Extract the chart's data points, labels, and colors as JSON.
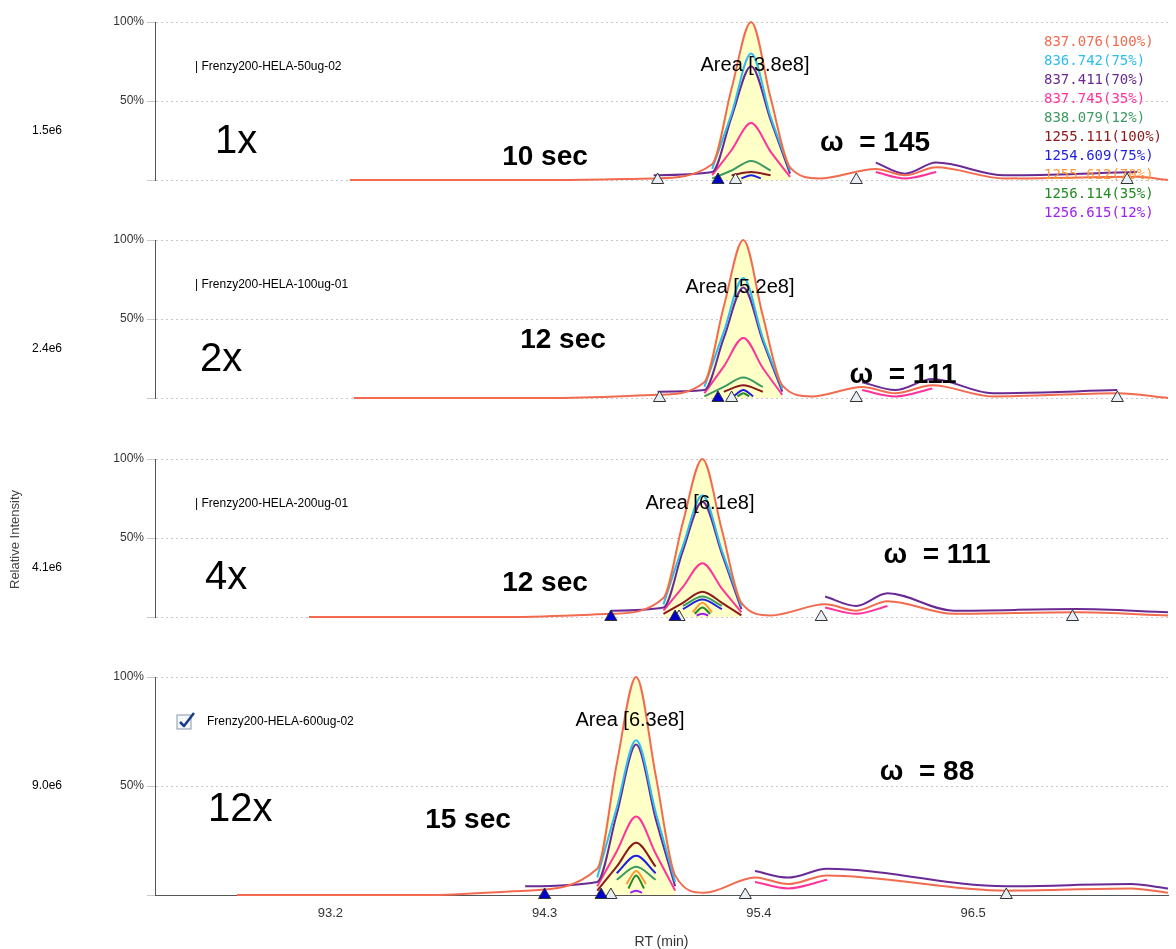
{
  "chart_data": [
    {
      "type": "line",
      "xlim": [
        92.3,
        97.5
      ],
      "ylim": [
        0,
        100
      ],
      "yticks": [
        {
          "value": 0,
          "label": null
        },
        {
          "value": 50,
          "label": "50%"
        },
        {
          "value": 100,
          "label": "100%"
        }
      ],
      "grid": "y",
      "tick_labels": "y",
      "marker": "none",
      "legend": "right",
      "x": [
        93.3,
        94.36,
        94.86,
        95.16,
        95.26,
        95.36,
        95.46,
        95.56,
        95.71,
        96.0,
        96.15,
        96.31,
        96.66,
        97.34,
        97.5
      ],
      "annotations": [
        "| Frenzy200-HELA-50ug-02",
        "1x",
        "10 sec",
        "ω  = 145",
        "1.5e6",
        "Area [3.8e8]"
      ],
      "series": [
        {
          "type": "area",
          "color": "#ffffc8",
          "x": [
            95.16,
            95.26,
            95.36,
            95.46,
            95.56
          ],
          "values": [
            10,
            58,
            100,
            52,
            8
          ]
        },
        {
          "name": "837.076(100%)",
          "color": "#f26b4f",
          "values": [
            0,
            0,
            1,
            10,
            58,
            100,
            52,
            8,
            1,
            7,
            3,
            8,
            1,
            2,
            0
          ]
        },
        {
          "name": "836.742(75%)",
          "color": "#2ebcf0",
          "values": [
            null,
            null,
            null,
            7,
            42,
            80,
            40,
            6,
            null,
            null,
            null,
            null,
            null,
            null,
            null
          ]
        },
        {
          "name": "837.411(70%)",
          "color": "#6a2a94",
          "values": [
            null,
            null,
            3,
            5,
            40,
            72,
            38,
            4,
            null,
            11,
            4,
            11,
            3,
            5,
            null
          ]
        },
        {
          "name": "837.745(35%)",
          "color": "#ff3399",
          "values": [
            null,
            null,
            null,
            3,
            19,
            36,
            18,
            2,
            null,
            5,
            1,
            5,
            null,
            null,
            null
          ]
        },
        {
          "name": "838.079(12%)",
          "color": "#3d9a62",
          "values": [
            null,
            null,
            null,
            1,
            6,
            12,
            6,
            null,
            null,
            null,
            null,
            null,
            null,
            null,
            null
          ]
        },
        {
          "name": "1255.111(100%)",
          "color": "#8b1a1a",
          "values": [
            null,
            null,
            null,
            null,
            3,
            5,
            3,
            null,
            null,
            null,
            null,
            null,
            null,
            null,
            null
          ]
        },
        {
          "name": "1254.609(75%)",
          "color": "#1f1fe0",
          "x": [
            95.31,
            95.36,
            95.41
          ],
          "values": [
            1,
            3,
            1
          ]
        },
        {
          "name": "1255.612(70%)",
          "color": "#ff9933",
          "values": [
            null,
            null,
            null,
            null,
            null,
            null,
            null,
            null,
            null,
            null,
            null,
            null,
            null,
            null,
            null
          ]
        },
        {
          "name": "1256.114(35%)",
          "color": "#228b22",
          "values": [
            null,
            null,
            null,
            null,
            null,
            null,
            null,
            null,
            null,
            null,
            null,
            null,
            null,
            null,
            null
          ]
        },
        {
          "name": "1256.615(12%)",
          "color": "#a020f0",
          "values": [
            null,
            null,
            null,
            null,
            null,
            null,
            null,
            null,
            null,
            null,
            null,
            null,
            null,
            null,
            null
          ]
        },
        {
          "type": "scatter",
          "marker": "triangle",
          "color": "#e8eef6",
          "x": [
            94.88,
            95.28,
            95.9,
            97.29
          ],
          "values": [
            0,
            0,
            0,
            0
          ]
        },
        {
          "type": "scatter",
          "marker": "triangle",
          "color": "#0000cc",
          "x": [
            95.19
          ],
          "values": [
            0
          ]
        }
      ]
    },
    {
      "type": "line",
      "xlim": [
        92.3,
        97.5
      ],
      "ylim": [
        0,
        100
      ],
      "yticks": [
        {
          "value": 0,
          "label": null
        },
        {
          "value": 50,
          "label": "50%"
        },
        {
          "value": 100,
          "label": "100%"
        }
      ],
      "grid": "y",
      "tick_labels": "y",
      "marker": "none",
      "x": [
        93.32,
        94.32,
        94.88,
        95.12,
        95.22,
        95.32,
        95.42,
        95.52,
        95.67,
        95.93,
        96.1,
        96.29,
        96.6,
        97.24,
        97.5
      ],
      "annotations": [
        "| Frenzy200-HELA-100ug-01",
        "2x",
        "12 sec",
        "ω  = 111",
        "2.4e6",
        "Area [5.2e8]"
      ],
      "series": [
        {
          "type": "area",
          "color": "#ffffc8",
          "x": [
            95.12,
            95.22,
            95.32,
            95.42,
            95.52
          ],
          "values": [
            10,
            58,
            100,
            52,
            8
          ]
        },
        {
          "color": "#f26b4f",
          "values": [
            0,
            0,
            2,
            10,
            58,
            100,
            52,
            8,
            1,
            7,
            3,
            8,
            1,
            3,
            0
          ]
        },
        {
          "color": "#2ebcf0",
          "values": [
            null,
            null,
            null,
            7,
            42,
            76,
            38,
            6,
            null,
            null,
            null,
            null,
            null,
            null,
            null
          ]
        },
        {
          "color": "#6a2a94",
          "values": [
            null,
            null,
            4,
            5,
            38,
            70,
            36,
            4,
            null,
            10,
            5,
            12,
            3,
            5,
            null
          ]
        },
        {
          "color": "#ff3399",
          "values": [
            null,
            null,
            null,
            3,
            20,
            38,
            19,
            2,
            null,
            5,
            1,
            6,
            null,
            null,
            null
          ]
        },
        {
          "color": "#3d9a62",
          "values": [
            null,
            null,
            null,
            1,
            7,
            13,
            7,
            null,
            null,
            null,
            null,
            null,
            null,
            null,
            null
          ]
        },
        {
          "color": "#8b1a1a",
          "values": [
            null,
            null,
            null,
            null,
            4,
            8,
            4,
            null,
            null,
            null,
            null,
            null,
            null,
            null,
            null
          ]
        },
        {
          "color": "#1f1fe0",
          "x": [
            95.27,
            95.32,
            95.37
          ],
          "values": [
            1,
            5,
            1
          ]
        },
        {
          "color": "#ff9933",
          "values": [
            null,
            null,
            null,
            null,
            null,
            null,
            null,
            null,
            null,
            null,
            null,
            null,
            null,
            null,
            null
          ]
        },
        {
          "color": "#228b22",
          "x": [
            95.29,
            95.32,
            95.35
          ],
          "values": [
            1,
            3,
            1
          ]
        },
        {
          "color": "#a020f0",
          "values": [
            null,
            null,
            null,
            null,
            null,
            null,
            null,
            null,
            null,
            null,
            null,
            null,
            null,
            null,
            null
          ]
        },
        {
          "type": "scatter",
          "marker": "triangle",
          "color": "#e8eef6",
          "x": [
            94.89,
            95.26,
            95.9,
            97.24
          ],
          "values": [
            0,
            0,
            0,
            0
          ]
        },
        {
          "type": "scatter",
          "marker": "triangle",
          "color": "#0000cc",
          "x": [
            95.19
          ],
          "values": [
            0
          ]
        }
      ]
    },
    {
      "type": "line",
      "ylabel": "Relative Intensity",
      "xlim": [
        92.3,
        97.5
      ],
      "ylim": [
        0,
        100
      ],
      "yticks": [
        {
          "value": 0,
          "label": null
        },
        {
          "value": 50,
          "label": "50%"
        },
        {
          "value": 100,
          "label": "100%"
        }
      ],
      "grid": "y",
      "tick_labels": "y",
      "marker": "none",
      "x": [
        93.09,
        94.1,
        94.64,
        94.91,
        95.01,
        95.11,
        95.21,
        95.31,
        95.46,
        95.74,
        95.9,
        96.06,
        96.4,
        97.03,
        97.5
      ],
      "annotations": [
        "| Frenzy200-HELA-200ug-01",
        "4x",
        "12 sec",
        "ω  = 111",
        "4.1e6",
        "Area [6.1e8]"
      ],
      "series": [
        {
          "type": "area",
          "color": "#ffffc8",
          "x": [
            94.91,
            95.01,
            95.11,
            95.21,
            95.31
          ],
          "values": [
            12,
            60,
            100,
            55,
            9
          ]
        },
        {
          "color": "#f26b4f",
          "values": [
            0,
            0,
            2,
            12,
            60,
            100,
            55,
            9,
            1,
            8,
            4,
            10,
            2,
            3,
            1
          ]
        },
        {
          "color": "#2ebcf0",
          "values": [
            null,
            null,
            null,
            8,
            45,
            77,
            42,
            7,
            null,
            null,
            null,
            null,
            null,
            null,
            null
          ]
        },
        {
          "color": "#6a2a94",
          "values": [
            null,
            null,
            4,
            6,
            42,
            73,
            40,
            5,
            null,
            13,
            7,
            15,
            4,
            5,
            3
          ]
        },
        {
          "color": "#ff3399",
          "values": [
            null,
            null,
            null,
            4,
            19,
            34,
            18,
            3,
            null,
            6,
            2,
            7,
            null,
            null,
            null
          ]
        },
        {
          "color": "#3d9a62",
          "values": [
            null,
            null,
            null,
            null,
            7,
            13,
            7,
            null,
            null,
            null,
            null,
            null,
            null,
            null,
            null
          ]
        },
        {
          "color": "#8b1a1a",
          "values": [
            null,
            null,
            null,
            2,
            9,
            16,
            9,
            1,
            null,
            null,
            null,
            null,
            null,
            null,
            null
          ]
        },
        {
          "color": "#1f1fe0",
          "values": [
            null,
            null,
            null,
            null,
            5,
            11,
            5,
            null,
            null,
            null,
            null,
            null,
            null,
            null,
            null
          ]
        },
        {
          "color": "#ff9933",
          "x": [
            95.06,
            95.11,
            95.16
          ],
          "values": [
            3,
            9,
            3
          ]
        },
        {
          "color": "#228b22",
          "x": [
            95.07,
            95.11,
            95.15
          ],
          "values": [
            2,
            6,
            2
          ]
        },
        {
          "color": "#a020f0",
          "x": [
            95.08,
            95.11,
            95.14
          ],
          "values": [
            1,
            2,
            1
          ]
        },
        {
          "type": "scatter",
          "marker": "triangle",
          "color": "#e8eef6",
          "x": [
            94.99,
            95.72,
            97.01
          ],
          "values": [
            0,
            0,
            0
          ]
        },
        {
          "type": "scatter",
          "marker": "triangle",
          "color": "#0000cc",
          "x": [
            94.64,
            94.97
          ],
          "values": [
            0,
            0
          ]
        }
      ]
    },
    {
      "type": "line",
      "xlabel": "RT (min)",
      "xlim": [
        92.3,
        97.5
      ],
      "xticks": [
        93.2,
        94.3,
        95.4,
        96.5
      ],
      "ylim": [
        0,
        100
      ],
      "yticks": [
        {
          "value": 0,
          "label": null
        },
        {
          "value": 50,
          "label": "50%"
        },
        {
          "value": 100,
          "label": "100%"
        }
      ],
      "grid": "y",
      "marker": "none",
      "x": [
        92.72,
        93.7,
        94.2,
        94.57,
        94.67,
        94.77,
        94.87,
        94.97,
        95.12,
        95.38,
        95.55,
        95.75,
        96.67,
        97.31,
        97.5
      ],
      "annotations": [
        "Frenzy200-HELA-600ug-02",
        "12x",
        "15 sec",
        "ω  = 88",
        "9.0e6",
        "Area [6.3e8]"
      ],
      "series": [
        {
          "type": "area",
          "color": "#ffffc8",
          "x": [
            94.57,
            94.67,
            94.77,
            94.87,
            94.97
          ],
          "values": [
            12,
            60,
            100,
            55,
            9
          ]
        },
        {
          "color": "#f26b4f",
          "values": [
            0,
            0,
            2,
            12,
            60,
            100,
            55,
            9,
            1,
            8,
            5,
            9,
            2,
            3,
            1
          ]
        },
        {
          "color": "#2ebcf0",
          "values": [
            null,
            null,
            null,
            8,
            40,
            71,
            38,
            6,
            null,
            null,
            null,
            null,
            null,
            null,
            null
          ]
        },
        {
          "color": "#6a2a94",
          "values": [
            null,
            null,
            4,
            6,
            37,
            69,
            35,
            4,
            null,
            11,
            8,
            12,
            4,
            5,
            3
          ]
        },
        {
          "color": "#ff3399",
          "values": [
            null,
            null,
            null,
            4,
            20,
            36,
            19,
            2,
            null,
            6,
            3,
            7,
            null,
            null,
            null
          ]
        },
        {
          "color": "#3d9a62",
          "values": [
            null,
            null,
            null,
            null,
            7,
            13,
            7,
            null,
            null,
            null,
            null,
            null,
            null,
            null,
            null
          ]
        },
        {
          "color": "#8b1a1a",
          "values": [
            null,
            null,
            null,
            2,
            13,
            24,
            13,
            null,
            null,
            null,
            null,
            null,
            null,
            null,
            null
          ]
        },
        {
          "color": "#1f1fe0",
          "values": [
            null,
            null,
            null,
            null,
            10,
            18,
            10,
            null,
            null,
            null,
            null,
            null,
            null,
            null,
            null
          ]
        },
        {
          "color": "#ff9933",
          "x": [
            94.72,
            94.77,
            94.82
          ],
          "values": [
            5,
            11,
            5
          ]
        },
        {
          "color": "#228b22",
          "x": [
            94.73,
            94.77,
            94.81
          ],
          "values": [
            3,
            9,
            3
          ]
        },
        {
          "color": "#a020f0",
          "x": [
            94.74,
            94.77,
            94.8
          ],
          "values": [
            1,
            2,
            1
          ]
        },
        {
          "type": "scatter",
          "marker": "triangle",
          "color": "#e8eef6",
          "x": [
            94.64,
            95.33,
            96.67
          ],
          "values": [
            0,
            0,
            0
          ]
        },
        {
          "type": "scatter",
          "marker": "triangle",
          "color": "#0000cc",
          "x": [
            94.3,
            94.59
          ],
          "values": [
            0,
            0
          ]
        }
      ]
    }
  ]
}
